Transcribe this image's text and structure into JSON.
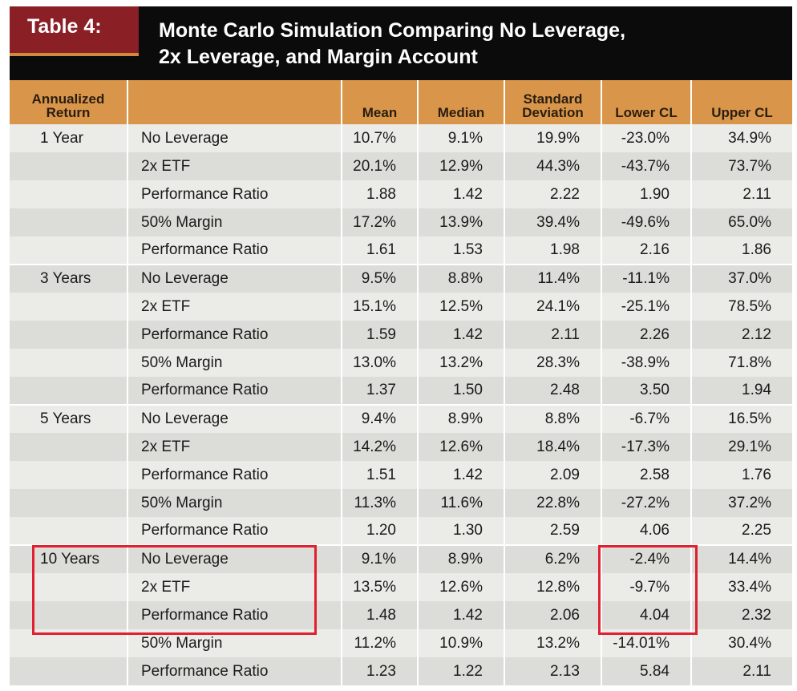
{
  "header": {
    "label": "Table 4:",
    "title_line1": "Monte Carlo Simulation Comparing No Leverage,",
    "title_line2": "2x Leverage, and Margin Account"
  },
  "columns": {
    "period_line1": "Annualized",
    "period_line2": "Return",
    "strategy": "",
    "mean": "Mean",
    "median": "Median",
    "std_line1": "Standard",
    "std_line2": "Deviation",
    "lower": "Lower CL",
    "upper": "Upper CL"
  },
  "rows": [
    {
      "period": "1 Year",
      "strategy": "No Leverage",
      "mean": "10.7%",
      "median": "9.1%",
      "std": "19.9%",
      "lower": "-23.0%",
      "upper": "34.9%"
    },
    {
      "period": "",
      "strategy": "2x ETF",
      "mean": "20.1%",
      "median": "12.9%",
      "std": "44.3%",
      "lower": "-43.7%",
      "upper": "73.7%"
    },
    {
      "period": "",
      "strategy": "Performance Ratio",
      "mean": "1.88",
      "median": "1.42",
      "std": "2.22",
      "lower": "1.90",
      "upper": "2.11"
    },
    {
      "period": "",
      "strategy": "50% Margin",
      "mean": "17.2%",
      "median": "13.9%",
      "std": "39.4%",
      "lower": "-49.6%",
      "upper": "65.0%"
    },
    {
      "period": "",
      "strategy": "Performance Ratio",
      "mean": "1.61",
      "median": "1.53",
      "std": "1.98",
      "lower": "2.16",
      "upper": "1.86"
    },
    {
      "period": "3 Years",
      "strategy": "No Leverage",
      "mean": "9.5%",
      "median": "8.8%",
      "std": "11.4%",
      "lower": "-11.1%",
      "upper": "37.0%"
    },
    {
      "period": "",
      "strategy": "2x ETF",
      "mean": "15.1%",
      "median": "12.5%",
      "std": "24.1%",
      "lower": "-25.1%",
      "upper": "78.5%"
    },
    {
      "period": "",
      "strategy": "Performance Ratio",
      "mean": "1.59",
      "median": "1.42",
      "std": "2.11",
      "lower": "2.26",
      "upper": "2.12"
    },
    {
      "period": "",
      "strategy": "50% Margin",
      "mean": "13.0%",
      "median": "13.2%",
      "std": "28.3%",
      "lower": "-38.9%",
      "upper": "71.8%"
    },
    {
      "period": "",
      "strategy": "Performance Ratio",
      "mean": "1.37",
      "median": "1.50",
      "std": "2.48",
      "lower": "3.50",
      "upper": "1.94"
    },
    {
      "period": "5 Years",
      "strategy": "No Leverage",
      "mean": "9.4%",
      "median": "8.9%",
      "std": "8.8%",
      "lower": "-6.7%",
      "upper": "16.5%"
    },
    {
      "period": "",
      "strategy": "2x ETF",
      "mean": "14.2%",
      "median": "12.6%",
      "std": "18.4%",
      "lower": "-17.3%",
      "upper": "29.1%"
    },
    {
      "period": "",
      "strategy": "Performance Ratio",
      "mean": "1.51",
      "median": "1.42",
      "std": "2.09",
      "lower": "2.58",
      "upper": "1.76"
    },
    {
      "period": "",
      "strategy": "50% Margin",
      "mean": "11.3%",
      "median": "11.6%",
      "std": "22.8%",
      "lower": "-27.2%",
      "upper": "37.2%"
    },
    {
      "period": "",
      "strategy": "Performance Ratio",
      "mean": "1.20",
      "median": "1.30",
      "std": "2.59",
      "lower": "4.06",
      "upper": "2.25"
    },
    {
      "period": "10 Years",
      "strategy": "No Leverage",
      "mean": "9.1%",
      "median": "8.9%",
      "std": "6.2%",
      "lower": "-2.4%",
      "upper": "14.4%"
    },
    {
      "period": "",
      "strategy": "2x ETF",
      "mean": "13.5%",
      "median": "12.6%",
      "std": "12.8%",
      "lower": "-9.7%",
      "upper": "33.4%"
    },
    {
      "period": "",
      "strategy": "Performance Ratio",
      "mean": "1.48",
      "median": "1.42",
      "std": "2.06",
      "lower": "4.04",
      "upper": "2.32"
    },
    {
      "period": "",
      "strategy": "50% Margin",
      "mean": "11.2%",
      "median": "10.9%",
      "std": "13.2%",
      "lower": "-14.01%",
      "upper": "30.4%"
    },
    {
      "period": "",
      "strategy": "Performance Ratio",
      "mean": "1.23",
      "median": "1.22",
      "std": "2.13",
      "lower": "5.84",
      "upper": "2.11"
    }
  ],
  "colors": {
    "header_bg": "#0b0b0b",
    "label_bg": "#8a1f26",
    "column_header_bg": "#d9964a",
    "row_shade": "#dcdcd8",
    "row_light": "#ebebe8",
    "highlight_border": "#e02030"
  }
}
